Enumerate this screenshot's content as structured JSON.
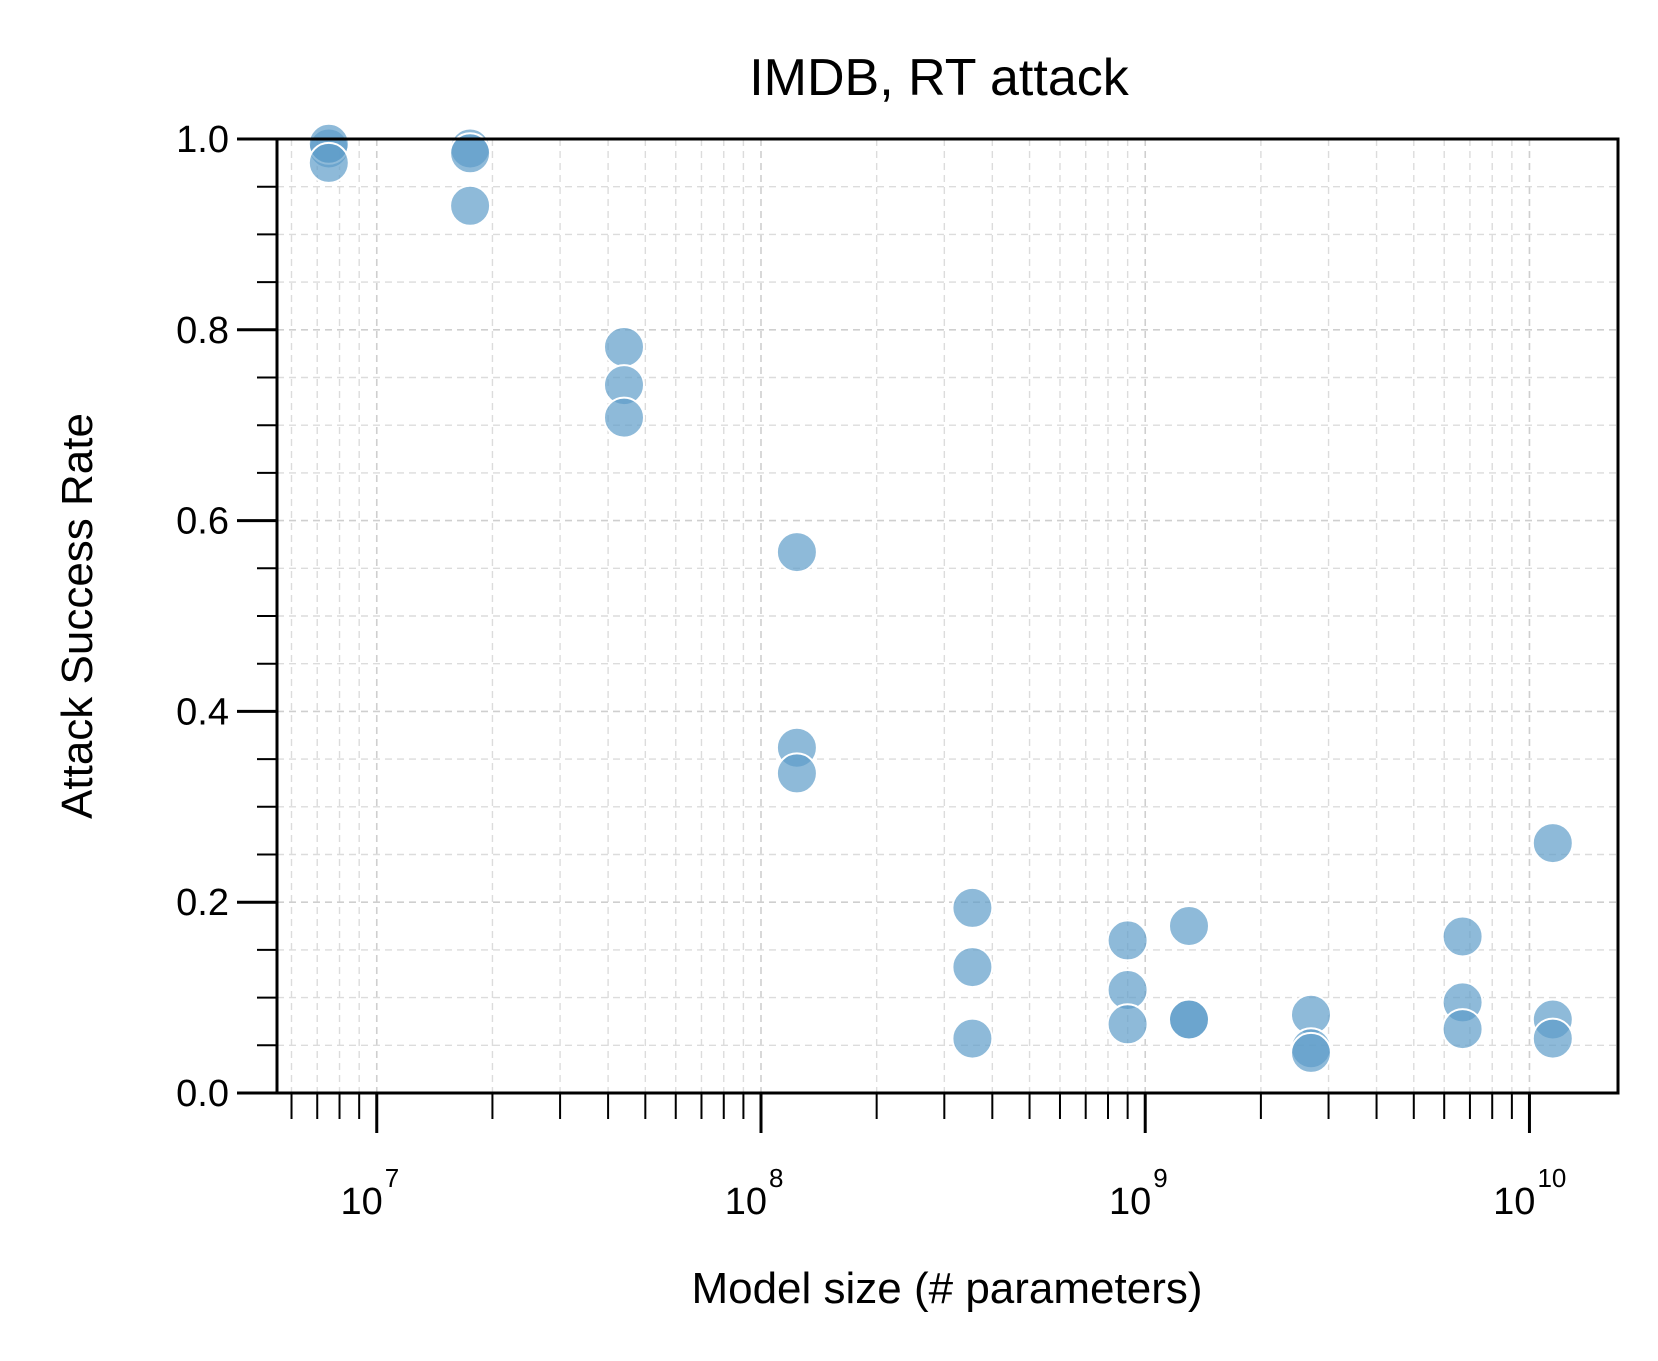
{
  "chart_data": {
    "type": "scatter",
    "title": "IMDB, RT attack",
    "xlabel": "Model size (# parameters)",
    "ylabel": "Attack Success Rate",
    "xscale": "log",
    "xlim": [
      5500000.0,
      17000000000.0
    ],
    "ylim": [
      0.0,
      1.0
    ],
    "x_ticks": [
      {
        "value": 10000000.0,
        "base": "10",
        "exp": "7"
      },
      {
        "value": 100000000.0,
        "base": "10",
        "exp": "8"
      },
      {
        "value": 1000000000.0,
        "base": "10",
        "exp": "9"
      },
      {
        "value": 10000000000.0,
        "base": "10",
        "exp": "10"
      }
    ],
    "y_ticks": [
      {
        "value": 0.0,
        "label": "0.0"
      },
      {
        "value": 0.2,
        "label": "0.2"
      },
      {
        "value": 0.4,
        "label": "0.4"
      },
      {
        "value": 0.6,
        "label": "0.6"
      },
      {
        "value": 0.8,
        "label": "0.8"
      },
      {
        "value": 1.0,
        "label": "1.0"
      }
    ],
    "grid": true,
    "point_color": "#5e9cc9",
    "points": [
      {
        "x": 7500000.0,
        "y": 0.99
      },
      {
        "x": 7500000.0,
        "y": 0.995
      },
      {
        "x": 7500000.0,
        "y": 0.975
      },
      {
        "x": 17500000.0,
        "y": 0.99
      },
      {
        "x": 17500000.0,
        "y": 0.985
      },
      {
        "x": 17500000.0,
        "y": 0.93
      },
      {
        "x": 44000000.0,
        "y": 0.782
      },
      {
        "x": 44000000.0,
        "y": 0.742
      },
      {
        "x": 44000000.0,
        "y": 0.708
      },
      {
        "x": 124000000.0,
        "y": 0.567
      },
      {
        "x": 124000000.0,
        "y": 0.362
      },
      {
        "x": 124000000.0,
        "y": 0.335
      },
      {
        "x": 355000000.0,
        "y": 0.194
      },
      {
        "x": 355000000.0,
        "y": 0.132
      },
      {
        "x": 355000000.0,
        "y": 0.057
      },
      {
        "x": 900000000.0,
        "y": 0.16
      },
      {
        "x": 900000000.0,
        "y": 0.108
      },
      {
        "x": 900000000.0,
        "y": 0.072
      },
      {
        "x": 1300000000.0,
        "y": 0.175
      },
      {
        "x": 1300000000.0,
        "y": 0.077
      },
      {
        "x": 1300000000.0,
        "y": 0.077
      },
      {
        "x": 2700000000.0,
        "y": 0.082
      },
      {
        "x": 2700000000.0,
        "y": 0.047
      },
      {
        "x": 2700000000.0,
        "y": 0.042
      },
      {
        "x": 6700000000.0,
        "y": 0.164
      },
      {
        "x": 6700000000.0,
        "y": 0.095
      },
      {
        "x": 6700000000.0,
        "y": 0.067
      },
      {
        "x": 11500000000.0,
        "y": 0.262
      },
      {
        "x": 11500000000.0,
        "y": 0.077
      },
      {
        "x": 11500000000.0,
        "y": 0.057
      }
    ]
  }
}
